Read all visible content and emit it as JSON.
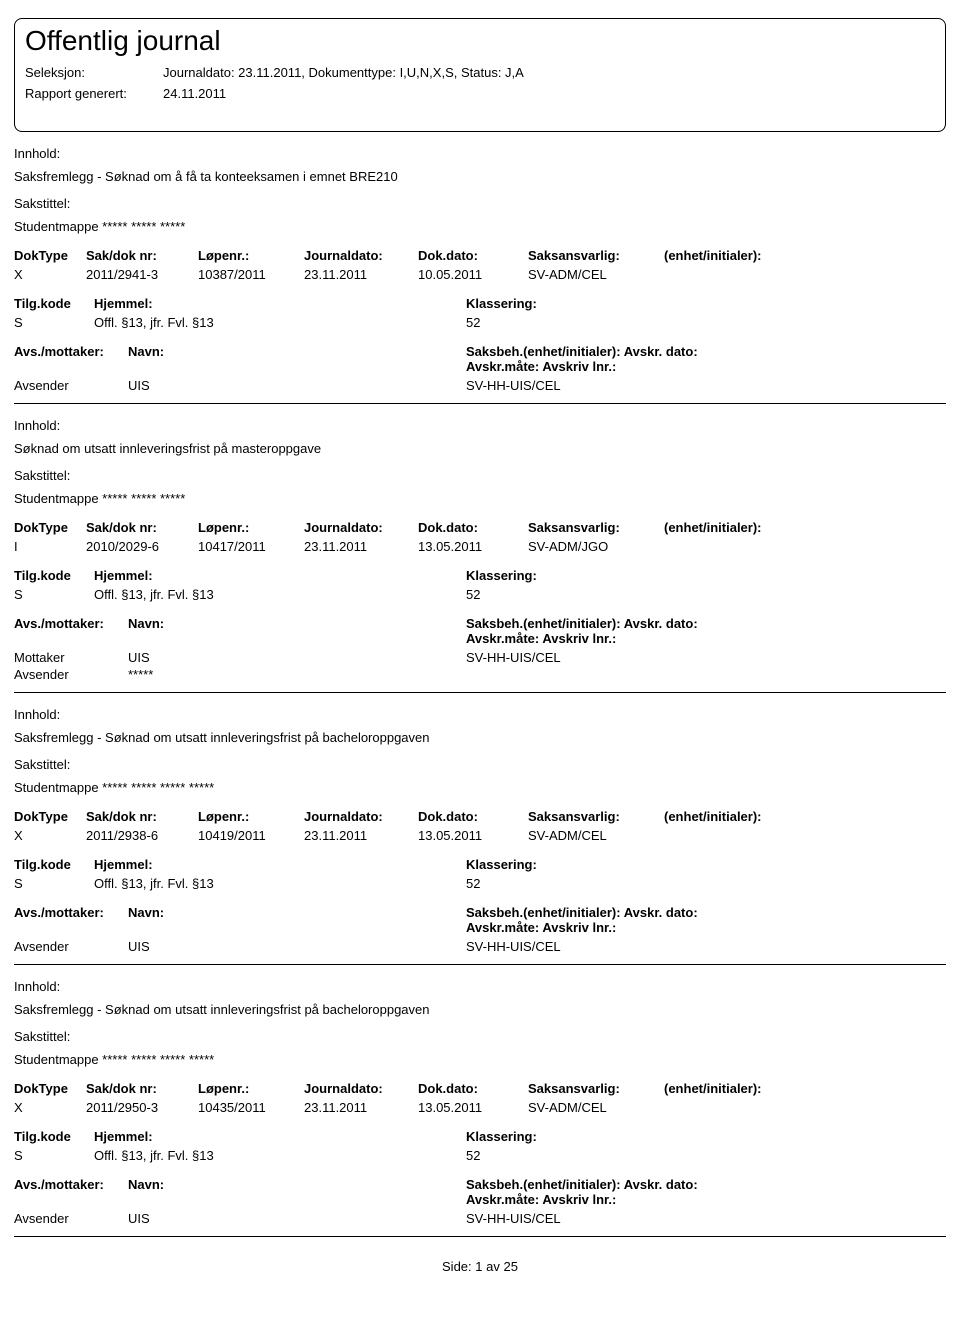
{
  "header": {
    "title": "Offentlig journal",
    "seleksjon_label": "Seleksjon:",
    "seleksjon_value": "Journaldato: 23.11.2011, Dokumenttype: I,U,N,X,S, Status: J,A",
    "rapport_label": "Rapport generert:",
    "rapport_value": "24.11.2011"
  },
  "labels": {
    "innhold": "Innhold:",
    "sakstittel": "Sakstittel:",
    "doktype": "DokType",
    "sakdoknr": "Sak/dok nr:",
    "lopenr": "Løpenr.:",
    "journaldato": "Journaldato:",
    "dokdato": "Dok.dato:",
    "saksansvarlig": "Saksansvarlig:",
    "enhet": "(enhet/initialer):",
    "tilgkode": "Tilg.kode",
    "hjemmel": "Hjemmel:",
    "klassering": "Klassering:",
    "avsmottaker": "Avs./mottaker:",
    "navn": "Navn:",
    "saksbeh": "Saksbeh.(enhet/initialer): Avskr. dato: Avskr.måte: Avskriv lnr.:"
  },
  "entries": [
    {
      "innhold": "Saksfremlegg - Søknad om å få ta konteeksamen i emnet BRE210",
      "sakstittel": "Studentmappe ***** ***** *****",
      "doktype": "X",
      "sakdoknr": "2011/2941-3",
      "lopenr": "10387/2011",
      "journaldato": "23.11.2011",
      "dokdato": "10.05.2011",
      "saksansvarlig": "SV-ADM/CEL",
      "tilgkode": "S",
      "hjemmel": "Offl. §13, jfr. Fvl. §13",
      "klassering": "52",
      "parties": [
        {
          "role": "Avsender",
          "navn": "UIS",
          "saksbeh": "SV-HH-UIS/CEL"
        }
      ]
    },
    {
      "innhold": "Søknad om utsatt innleveringsfrist på masteroppgave",
      "sakstittel": "Studentmappe ***** ***** *****",
      "doktype": "I",
      "sakdoknr": "2010/2029-6",
      "lopenr": "10417/2011",
      "journaldato": "23.11.2011",
      "dokdato": "13.05.2011",
      "saksansvarlig": "SV-ADM/JGO",
      "tilgkode": "S",
      "hjemmel": "Offl. §13, jfr. Fvl. §13",
      "klassering": "52",
      "parties": [
        {
          "role": "Mottaker",
          "navn": "UIS",
          "saksbeh": "SV-HH-UIS/CEL"
        },
        {
          "role": "Avsender",
          "navn": "*****",
          "saksbeh": ""
        }
      ]
    },
    {
      "innhold": "Saksfremlegg - Søknad om utsatt innleveringsfrist på bacheloroppgaven",
      "sakstittel": "Studentmappe ***** ***** ***** *****",
      "doktype": "X",
      "sakdoknr": "2011/2938-6",
      "lopenr": "10419/2011",
      "journaldato": "23.11.2011",
      "dokdato": "13.05.2011",
      "saksansvarlig": "SV-ADM/CEL",
      "tilgkode": "S",
      "hjemmel": "Offl. §13, jfr. Fvl. §13",
      "klassering": "52",
      "parties": [
        {
          "role": "Avsender",
          "navn": "UIS",
          "saksbeh": "SV-HH-UIS/CEL"
        }
      ]
    },
    {
      "innhold": "Saksfremlegg - Søknad om utsatt innleveringsfrist på bacheloroppgaven",
      "sakstittel": "Studentmappe ***** ***** ***** *****",
      "doktype": "X",
      "sakdoknr": "2011/2950-3",
      "lopenr": "10435/2011",
      "journaldato": "23.11.2011",
      "dokdato": "13.05.2011",
      "saksansvarlig": "SV-ADM/CEL",
      "tilgkode": "S",
      "hjemmel": "Offl. §13, jfr. Fvl. §13",
      "klassering": "52",
      "parties": [
        {
          "role": "Avsender",
          "navn": "UIS",
          "saksbeh": "SV-HH-UIS/CEL"
        }
      ]
    }
  ],
  "footer": {
    "side_label": "Side:",
    "page_current": "1",
    "page_sep": "av",
    "page_total": "25"
  }
}
